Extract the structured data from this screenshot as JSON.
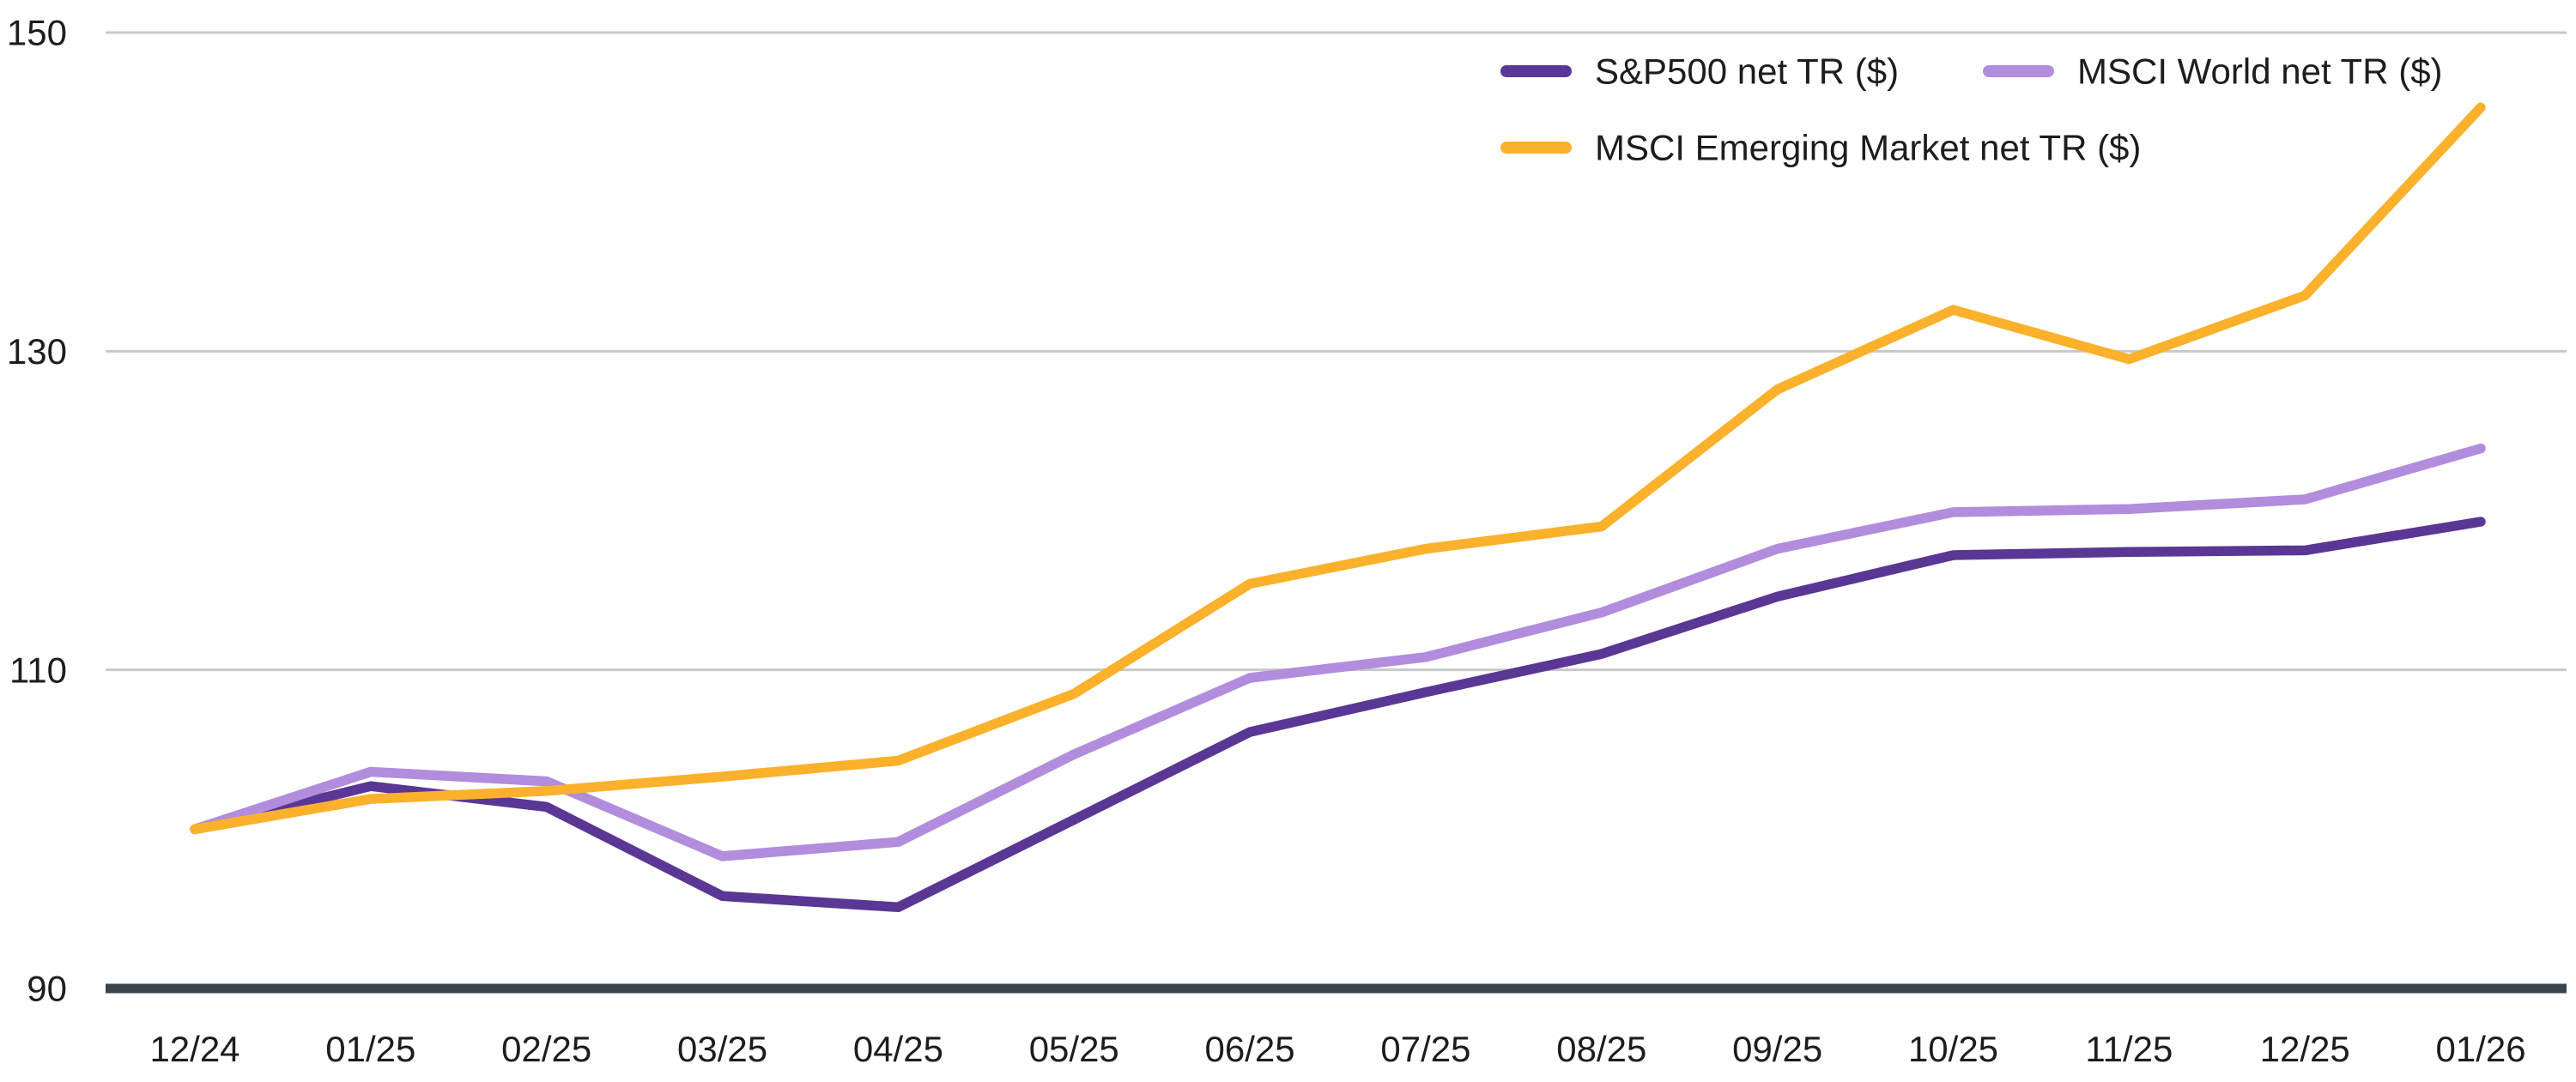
{
  "chart_data": {
    "type": "line",
    "title": "",
    "xlabel": "",
    "ylabel": "",
    "x_labels": [
      "12/24",
      "01/25",
      "02/25",
      "03/25",
      "04/25",
      "05/25",
      "06/25",
      "07/25",
      "08/25",
      "09/25",
      "10/25",
      "11/25",
      "12/25",
      "01/26"
    ],
    "y_ticks": [
      150,
      130,
      110,
      90
    ],
    "ylim": [
      90,
      150.5
    ],
    "grid": "horizontal-only",
    "legend_position": "top-right",
    "series": [
      {
        "name": "S&P500 net TR ($)",
        "color": "#5A3794",
        "values": [
          100,
          102.7,
          101.4,
          95.8,
          95.1,
          100.6,
          106.1,
          108.6,
          111.0,
          114.6,
          117.2,
          117.4,
          117.5,
          119.3
        ]
      },
      {
        "name": "MSCI World net TR ($)",
        "color": "#B28CDD",
        "values": [
          100,
          103.6,
          103.0,
          98.3,
          99.2,
          104.7,
          109.5,
          110.8,
          113.6,
          117.6,
          119.9,
          120.1,
          120.7,
          123.9
        ]
      },
      {
        "name": "MSCI Emerging Market net TR ($)",
        "color": "#FBB12B",
        "values": [
          100,
          101.9,
          102.4,
          103.3,
          104.3,
          108.5,
          115.4,
          117.6,
          119.0,
          127.6,
          132.6,
          129.5,
          133.5,
          145.3
        ]
      }
    ]
  },
  "colors": {
    "background": "#FFFFFF",
    "gridline": "#C9C9C9",
    "axis_line": "#39434B",
    "tick_text": "#1D1D1B"
  }
}
